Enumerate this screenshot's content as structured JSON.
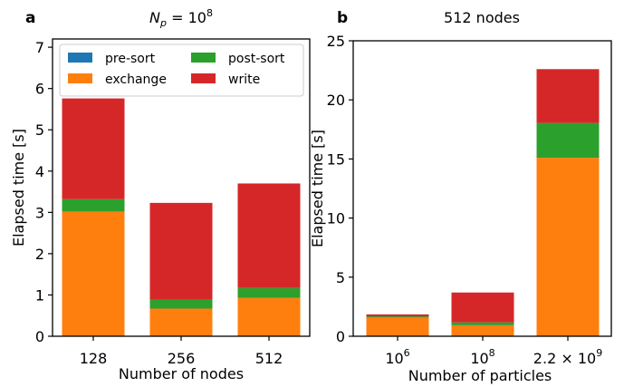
{
  "chart_data": [
    {
      "panel": "a",
      "type": "bar",
      "stacked": true,
      "title_prefix": "N",
      "title_subscript": "p",
      "title_equals": " = 10",
      "title_exponent": "8",
      "xlabel": "Number of nodes",
      "ylabel": "Elapsed time [s]",
      "categories": [
        "128",
        "256",
        "512"
      ],
      "ylim": [
        0,
        7.2
      ],
      "yticks": [
        0,
        1,
        2,
        3,
        4,
        5,
        6,
        7
      ],
      "ytick_labels": [
        "0",
        "1",
        "2",
        "3",
        "4",
        "5",
        "6",
        "7"
      ],
      "series": [
        {
          "name": "pre-sort",
          "color": "#1f77b4",
          "values": [
            0.0,
            0.0,
            0.0
          ]
        },
        {
          "name": "exchange",
          "color": "#ff7f0e",
          "values": [
            3.02,
            0.67,
            0.93
          ]
        },
        {
          "name": "post-sort",
          "color": "#2ca02c",
          "values": [
            0.3,
            0.22,
            0.24
          ]
        },
        {
          "name": "write",
          "color": "#d62728",
          "values": [
            2.44,
            2.34,
            2.53
          ]
        }
      ],
      "legend": {
        "placement": "top",
        "columns": 2,
        "order": [
          "pre-sort",
          "post-sort",
          "exchange",
          "write"
        ]
      },
      "grid": false
    },
    {
      "panel": "b",
      "type": "bar",
      "stacked": true,
      "title": "512 nodes",
      "xlabel": "Number of particles",
      "ylabel": "Elapsed time [s]",
      "categories": [
        {
          "base": "10",
          "exp": "6"
        },
        {
          "base": "10",
          "exp": "8"
        },
        {
          "base": "2.2 × 10",
          "exp": "9"
        }
      ],
      "ylim": [
        0,
        25
      ],
      "yticks": [
        0,
        5,
        10,
        15,
        20,
        25
      ],
      "ytick_labels": [
        "0",
        "5",
        "10",
        "15",
        "20",
        "25"
      ],
      "series": [
        {
          "name": "pre-sort",
          "color": "#1f77b4",
          "values": [
            0.0,
            0.0,
            0.0
          ]
        },
        {
          "name": "exchange",
          "color": "#ff7f0e",
          "values": [
            1.58,
            0.93,
            15.1
          ]
        },
        {
          "name": "post-sort",
          "color": "#2ca02c",
          "values": [
            0.1,
            0.24,
            2.95
          ]
        },
        {
          "name": "write",
          "color": "#d62728",
          "values": [
            0.17,
            2.53,
            4.55
          ]
        }
      ],
      "grid": false
    }
  ]
}
